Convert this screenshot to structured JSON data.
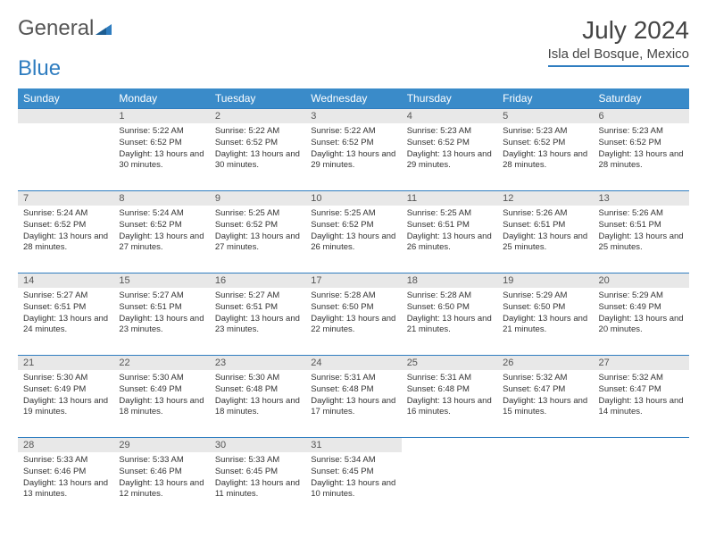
{
  "logo": {
    "general": "General",
    "blue": "Blue"
  },
  "title": {
    "month": "July 2024",
    "location": "Isla del Bosque, Mexico"
  },
  "weekdays": [
    "Sunday",
    "Monday",
    "Tuesday",
    "Wednesday",
    "Thursday",
    "Friday",
    "Saturday"
  ],
  "colors": {
    "headerBg": "#3a8bc9",
    "headerText": "#ffffff",
    "rule": "#2f7dc0",
    "dayBg": "#e8e8e8",
    "text": "#333333",
    "logoBlue": "#2f7dc0",
    "logoGray": "#555555"
  },
  "layout": {
    "cols": 7,
    "rows": 5,
    "firstDayCol": 1,
    "daysInMonth": 31
  },
  "days": {
    "1": {
      "sunrise": "5:22 AM",
      "sunset": "6:52 PM",
      "daylight": "13 hours and 30 minutes."
    },
    "2": {
      "sunrise": "5:22 AM",
      "sunset": "6:52 PM",
      "daylight": "13 hours and 30 minutes."
    },
    "3": {
      "sunrise": "5:22 AM",
      "sunset": "6:52 PM",
      "daylight": "13 hours and 29 minutes."
    },
    "4": {
      "sunrise": "5:23 AM",
      "sunset": "6:52 PM",
      "daylight": "13 hours and 29 minutes."
    },
    "5": {
      "sunrise": "5:23 AM",
      "sunset": "6:52 PM",
      "daylight": "13 hours and 28 minutes."
    },
    "6": {
      "sunrise": "5:23 AM",
      "sunset": "6:52 PM",
      "daylight": "13 hours and 28 minutes."
    },
    "7": {
      "sunrise": "5:24 AM",
      "sunset": "6:52 PM",
      "daylight": "13 hours and 28 minutes."
    },
    "8": {
      "sunrise": "5:24 AM",
      "sunset": "6:52 PM",
      "daylight": "13 hours and 27 minutes."
    },
    "9": {
      "sunrise": "5:25 AM",
      "sunset": "6:52 PM",
      "daylight": "13 hours and 27 minutes."
    },
    "10": {
      "sunrise": "5:25 AM",
      "sunset": "6:52 PM",
      "daylight": "13 hours and 26 minutes."
    },
    "11": {
      "sunrise": "5:25 AM",
      "sunset": "6:51 PM",
      "daylight": "13 hours and 26 minutes."
    },
    "12": {
      "sunrise": "5:26 AM",
      "sunset": "6:51 PM",
      "daylight": "13 hours and 25 minutes."
    },
    "13": {
      "sunrise": "5:26 AM",
      "sunset": "6:51 PM",
      "daylight": "13 hours and 25 minutes."
    },
    "14": {
      "sunrise": "5:27 AM",
      "sunset": "6:51 PM",
      "daylight": "13 hours and 24 minutes."
    },
    "15": {
      "sunrise": "5:27 AM",
      "sunset": "6:51 PM",
      "daylight": "13 hours and 23 minutes."
    },
    "16": {
      "sunrise": "5:27 AM",
      "sunset": "6:51 PM",
      "daylight": "13 hours and 23 minutes."
    },
    "17": {
      "sunrise": "5:28 AM",
      "sunset": "6:50 PM",
      "daylight": "13 hours and 22 minutes."
    },
    "18": {
      "sunrise": "5:28 AM",
      "sunset": "6:50 PM",
      "daylight": "13 hours and 21 minutes."
    },
    "19": {
      "sunrise": "5:29 AM",
      "sunset": "6:50 PM",
      "daylight": "13 hours and 21 minutes."
    },
    "20": {
      "sunrise": "5:29 AM",
      "sunset": "6:49 PM",
      "daylight": "13 hours and 20 minutes."
    },
    "21": {
      "sunrise": "5:30 AM",
      "sunset": "6:49 PM",
      "daylight": "13 hours and 19 minutes."
    },
    "22": {
      "sunrise": "5:30 AM",
      "sunset": "6:49 PM",
      "daylight": "13 hours and 18 minutes."
    },
    "23": {
      "sunrise": "5:30 AM",
      "sunset": "6:48 PM",
      "daylight": "13 hours and 18 minutes."
    },
    "24": {
      "sunrise": "5:31 AM",
      "sunset": "6:48 PM",
      "daylight": "13 hours and 17 minutes."
    },
    "25": {
      "sunrise": "5:31 AM",
      "sunset": "6:48 PM",
      "daylight": "13 hours and 16 minutes."
    },
    "26": {
      "sunrise": "5:32 AM",
      "sunset": "6:47 PM",
      "daylight": "13 hours and 15 minutes."
    },
    "27": {
      "sunrise": "5:32 AM",
      "sunset": "6:47 PM",
      "daylight": "13 hours and 14 minutes."
    },
    "28": {
      "sunrise": "5:33 AM",
      "sunset": "6:46 PM",
      "daylight": "13 hours and 13 minutes."
    },
    "29": {
      "sunrise": "5:33 AM",
      "sunset": "6:46 PM",
      "daylight": "13 hours and 12 minutes."
    },
    "30": {
      "sunrise": "5:33 AM",
      "sunset": "6:45 PM",
      "daylight": "13 hours and 11 minutes."
    },
    "31": {
      "sunrise": "5:34 AM",
      "sunset": "6:45 PM",
      "daylight": "13 hours and 10 minutes."
    }
  },
  "labels": {
    "sunrise": "Sunrise:",
    "sunset": "Sunset:",
    "daylight": "Daylight:"
  }
}
